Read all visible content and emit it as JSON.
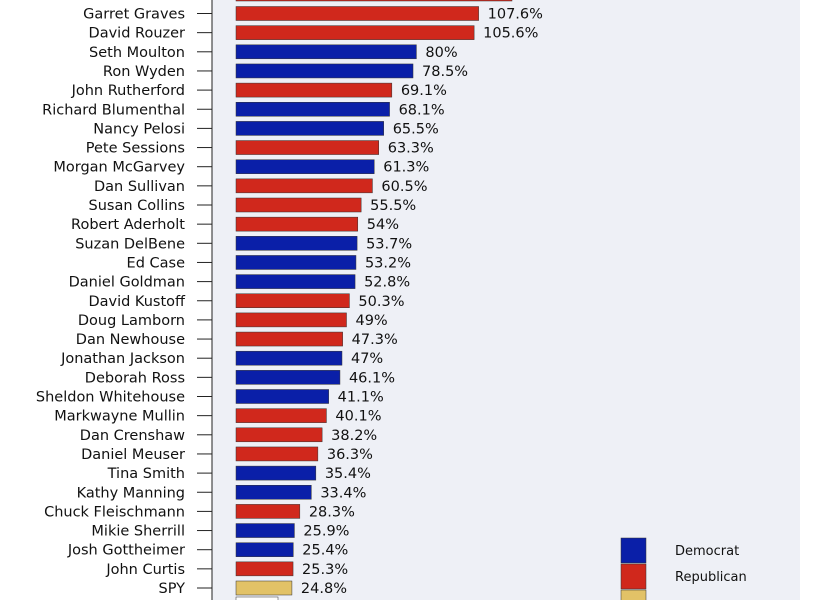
{
  "chart_data": {
    "type": "bar",
    "orientation": "horizontal",
    "value_suffix": "%",
    "colors": {
      "Democrat": "#0a1fa8",
      "Republican": "#d0281c",
      "SPY": "#e2c267"
    },
    "categories": [
      "Garret Graves",
      "David Rouzer",
      "Seth Moulton",
      "Ron Wyden",
      "John Rutherford",
      "Richard Blumenthal",
      "Nancy Pelosi",
      "Pete Sessions",
      "Morgan McGarvey",
      "Dan Sullivan",
      "Susan Collins",
      "Robert Aderholt",
      "Suzan DelBene",
      "Ed Case",
      "Daniel Goldman",
      "David Kustoff",
      "Doug Lamborn",
      "Dan Newhouse",
      "Jonathan Jackson",
      "Deborah Ross",
      "Sheldon Whitehouse",
      "Markwayne Mullin",
      "Dan Crenshaw",
      "Daniel Meuser",
      "Tina Smith",
      "Kathy Manning",
      "Chuck Fleischmann",
      "Mikie Sherrill",
      "Josh Gottheimer",
      "John Curtis",
      "SPY"
    ],
    "values": [
      107.6,
      105.6,
      80,
      78.5,
      69.1,
      68.1,
      65.5,
      63.3,
      61.3,
      60.5,
      55.5,
      54,
      53.7,
      53.2,
      52.8,
      50.3,
      49,
      47.3,
      47,
      46.1,
      41.1,
      40.1,
      38.2,
      36.3,
      35.4,
      33.4,
      28.3,
      25.9,
      25.4,
      25.3,
      24.8
    ],
    "value_labels": [
      "107.6%",
      "105.6%",
      "80%",
      "78.5%",
      "69.1%",
      "68.1%",
      "65.5%",
      "63.3%",
      "61.3%",
      "60.5%",
      "55.5%",
      "54%",
      "53.7%",
      "53.2%",
      "52.8%",
      "50.3%",
      "49%",
      "47.3%",
      "47%",
      "46.1%",
      "41.1%",
      "40.1%",
      "38.2%",
      "36.3%",
      "35.4%",
      "33.4%",
      "28.3%",
      "25.9%",
      "25.4%",
      "25.3%",
      "24.8%"
    ],
    "groups": [
      "Republican",
      "Republican",
      "Democrat",
      "Democrat",
      "Republican",
      "Democrat",
      "Democrat",
      "Republican",
      "Democrat",
      "Republican",
      "Republican",
      "Republican",
      "Democrat",
      "Democrat",
      "Democrat",
      "Republican",
      "Republican",
      "Republican",
      "Democrat",
      "Democrat",
      "Democrat",
      "Republican",
      "Republican",
      "Republican",
      "Democrat",
      "Democrat",
      "Republican",
      "Democrat",
      "Democrat",
      "Republican",
      "SPY"
    ],
    "legend": {
      "placement": "bottom-right",
      "entries": [
        {
          "name": "Democrat",
          "color": "#0a1fa8"
        },
        {
          "name": "Republican",
          "color": "#d0281c"
        }
      ]
    },
    "grid": false
  }
}
